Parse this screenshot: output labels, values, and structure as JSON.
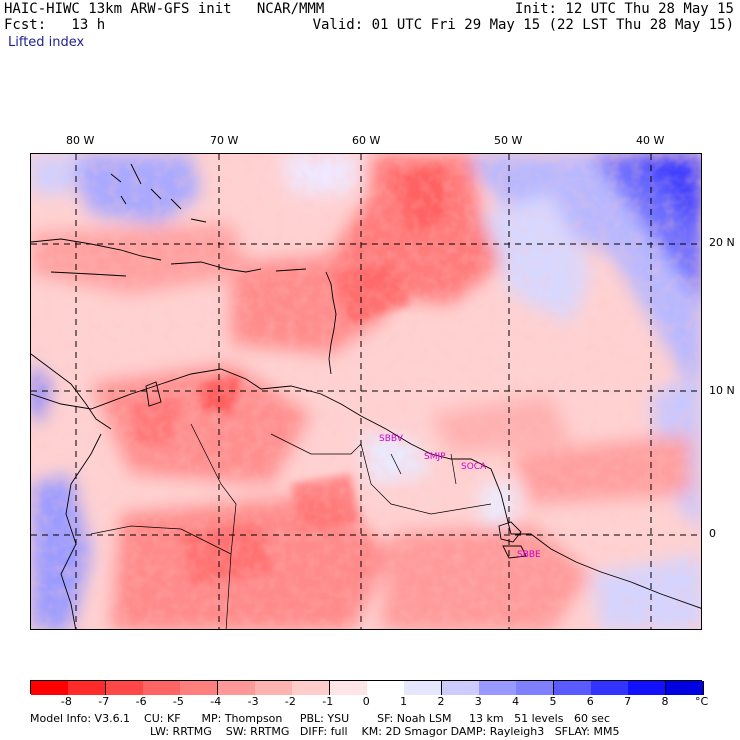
{
  "header": {
    "line1_left": "HAIC-HIWC 13km ARW-GFS init   NCAR/MMM",
    "line2_left": "Fcst:   13 h",
    "line3_left": "Lifted index",
    "line1_right": "Init: 12 UTC Thu 28 May 15",
    "line2_right": "Valid: 01 UTC Fri 29 May 15 (22 LST Thu 28 May 15)"
  },
  "map": {
    "longitude_labels": [
      "80 W",
      "70 W",
      "60 W",
      "50 W",
      "40 W"
    ],
    "latitude_labels": [
      "20 N",
      "10 N",
      "0"
    ],
    "stations": [
      "SBBV",
      "SMJP",
      "SOCA",
      "SBBE"
    ]
  },
  "colorbar": {
    "labels": [
      "-8",
      "-7",
      "-6",
      "-5",
      "-4",
      "-3",
      "-2",
      "-1",
      "0",
      "1",
      "2",
      "3",
      "4",
      "5",
      "6",
      "7",
      "8"
    ],
    "unit": "°C",
    "colors": [
      "#ff0000",
      "#ff2a2a",
      "#ff4747",
      "#ff6464",
      "#ff7f7f",
      "#ff9999",
      "#ffb2b2",
      "#ffcccc",
      "#ffe6e6",
      "#ffffff",
      "#e6e6ff",
      "#ccccff",
      "#9999ff",
      "#7f7fff",
      "#5a5aff",
      "#3333ff",
      "#1111ff",
      "#0000e0"
    ]
  },
  "footer": {
    "line1": "Model Info: V3.6.1    CU: KF      MP: Thompson     PBL: YSU        SF: Noah LSM     13 km   51 levels   60 sec",
    "line2": "LW: RRTMG    SW: RRTMG   DIFF: full    KM: 2D Smagor DAMP: Rayleigh3   SFLAY: MM5"
  }
}
